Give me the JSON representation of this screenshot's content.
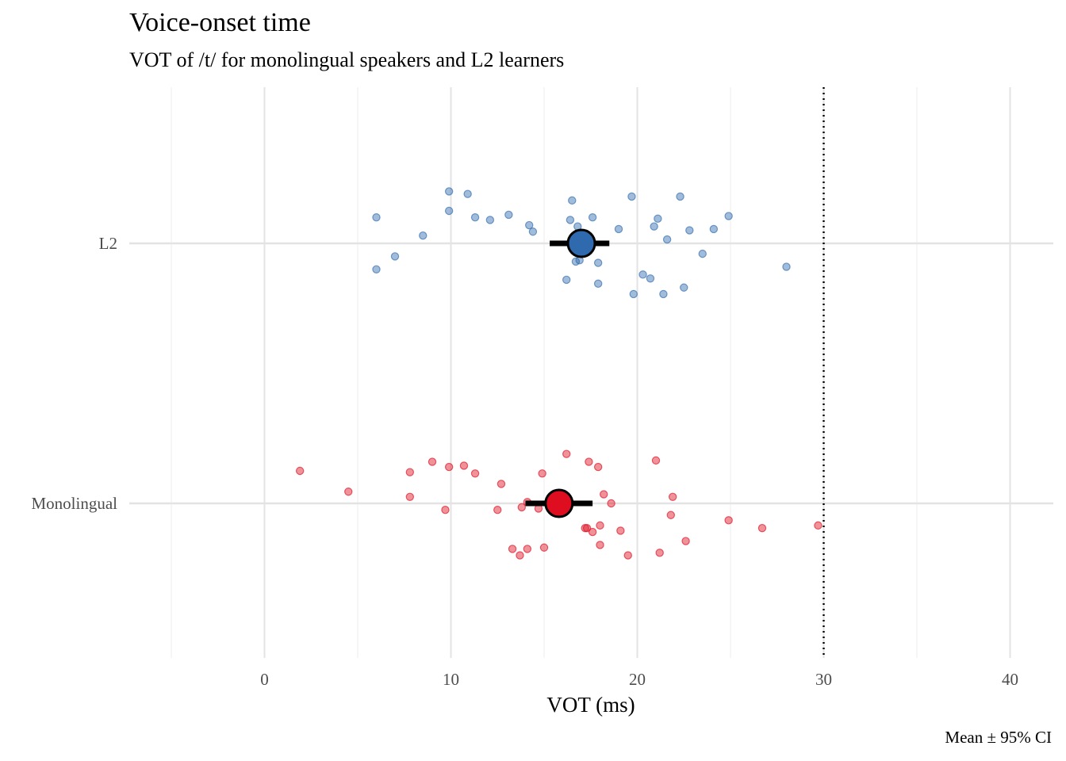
{
  "chart_data": {
    "type": "scatter",
    "title": "Voice-onset time",
    "subtitle": "VOT of /t/ for monolingual speakers and L2 learners",
    "xlabel": "VOT (ms)",
    "ylabel": "",
    "caption": "Mean ± 95% CI",
    "xlim": [
      -5,
      42
    ],
    "x_ticks": [
      0,
      10,
      20,
      30,
      40
    ],
    "categories": [
      "Monolingual",
      "L2"
    ],
    "grid": true,
    "legend": "none",
    "reference_line": {
      "x": 30,
      "style": "dotted"
    },
    "series": [
      {
        "category": "L2",
        "color": "#2e6aad",
        "mean": 17.0,
        "ci": [
          15.3,
          18.5
        ],
        "points": [
          {
            "x": 6.0,
            "jitter": 0.1
          },
          {
            "x": 6.0,
            "jitter": -0.1
          },
          {
            "x": 7.0,
            "jitter": -0.05
          },
          {
            "x": 8.5,
            "jitter": 0.03
          },
          {
            "x": 9.9,
            "jitter": 0.2
          },
          {
            "x": 9.9,
            "jitter": 0.125
          },
          {
            "x": 10.9,
            "jitter": 0.19
          },
          {
            "x": 11.3,
            "jitter": 0.1
          },
          {
            "x": 12.1,
            "jitter": 0.09
          },
          {
            "x": 13.1,
            "jitter": 0.11
          },
          {
            "x": 14.2,
            "jitter": 0.07
          },
          {
            "x": 14.4,
            "jitter": 0.045
          },
          {
            "x": 16.2,
            "jitter": -0.14
          },
          {
            "x": 16.4,
            "jitter": 0.09
          },
          {
            "x": 16.5,
            "jitter": 0.165
          },
          {
            "x": 16.7,
            "jitter": -0.07
          },
          {
            "x": 16.8,
            "jitter": 0.065
          },
          {
            "x": 16.9,
            "jitter": -0.065
          },
          {
            "x": 17.6,
            "jitter": 0.1
          },
          {
            "x": 17.9,
            "jitter": -0.155
          },
          {
            "x": 17.9,
            "jitter": -0.075
          },
          {
            "x": 19.0,
            "jitter": 0.055
          },
          {
            "x": 19.7,
            "jitter": 0.18
          },
          {
            "x": 19.8,
            "jitter": -0.195
          },
          {
            "x": 20.3,
            "jitter": -0.12
          },
          {
            "x": 20.7,
            "jitter": -0.135
          },
          {
            "x": 20.9,
            "jitter": 0.065
          },
          {
            "x": 21.1,
            "jitter": 0.095
          },
          {
            "x": 21.4,
            "jitter": -0.195
          },
          {
            "x": 21.6,
            "jitter": 0.015
          },
          {
            "x": 22.3,
            "jitter": 0.18
          },
          {
            "x": 22.5,
            "jitter": -0.17
          },
          {
            "x": 22.8,
            "jitter": 0.05
          },
          {
            "x": 23.5,
            "jitter": -0.04
          },
          {
            "x": 24.1,
            "jitter": 0.055
          },
          {
            "x": 24.9,
            "jitter": 0.105
          },
          {
            "x": 28.0,
            "jitter": -0.09
          }
        ]
      },
      {
        "category": "Monolingual",
        "color": "#de0d20",
        "mean": 15.8,
        "ci": [
          14.0,
          17.6
        ],
        "points": [
          {
            "x": 1.9,
            "jitter": 0.125
          },
          {
            "x": 4.5,
            "jitter": 0.045
          },
          {
            "x": 7.8,
            "jitter": 0.12
          },
          {
            "x": 7.8,
            "jitter": 0.025
          },
          {
            "x": 9.0,
            "jitter": 0.16
          },
          {
            "x": 9.7,
            "jitter": -0.025
          },
          {
            "x": 9.9,
            "jitter": 0.14
          },
          {
            "x": 10.7,
            "jitter": 0.145
          },
          {
            "x": 11.3,
            "jitter": 0.115
          },
          {
            "x": 12.5,
            "jitter": -0.025
          },
          {
            "x": 12.7,
            "jitter": 0.075
          },
          {
            "x": 13.3,
            "jitter": -0.175
          },
          {
            "x": 13.7,
            "jitter": -0.2
          },
          {
            "x": 13.8,
            "jitter": -0.015
          },
          {
            "x": 14.1,
            "jitter": 0.005
          },
          {
            "x": 14.1,
            "jitter": -0.175
          },
          {
            "x": 14.7,
            "jitter": -0.02
          },
          {
            "x": 14.9,
            "jitter": 0.115
          },
          {
            "x": 15.0,
            "jitter": -0.17
          },
          {
            "x": 16.2,
            "jitter": 0.19
          },
          {
            "x": 17.2,
            "jitter": -0.095
          },
          {
            "x": 17.3,
            "jitter": -0.095
          },
          {
            "x": 17.4,
            "jitter": 0.16
          },
          {
            "x": 17.6,
            "jitter": -0.11
          },
          {
            "x": 17.9,
            "jitter": 0.14
          },
          {
            "x": 18.0,
            "jitter": -0.085
          },
          {
            "x": 18.0,
            "jitter": -0.16
          },
          {
            "x": 18.2,
            "jitter": 0.035
          },
          {
            "x": 18.6,
            "jitter": 0.0
          },
          {
            "x": 19.1,
            "jitter": -0.105
          },
          {
            "x": 19.5,
            "jitter": -0.2
          },
          {
            "x": 21.0,
            "jitter": 0.165
          },
          {
            "x": 21.2,
            "jitter": -0.19
          },
          {
            "x": 21.8,
            "jitter": -0.045
          },
          {
            "x": 21.9,
            "jitter": 0.025
          },
          {
            "x": 22.6,
            "jitter": -0.145
          },
          {
            "x": 24.9,
            "jitter": -0.065
          },
          {
            "x": 26.7,
            "jitter": -0.095
          },
          {
            "x": 29.7,
            "jitter": -0.085
          }
        ]
      }
    ]
  }
}
